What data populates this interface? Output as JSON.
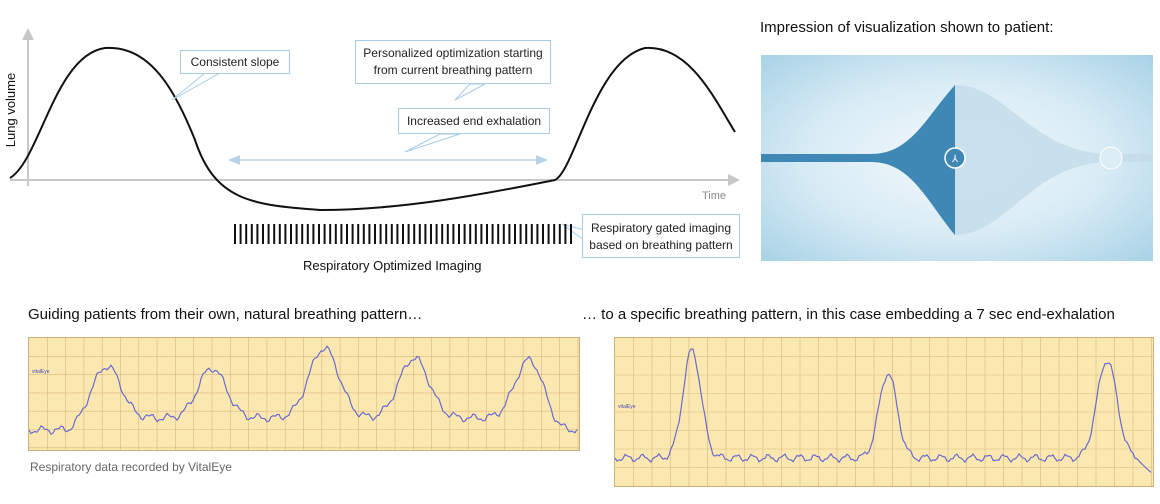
{
  "diagram": {
    "y_axis_label": "Lung volume",
    "x_axis_label": "Time",
    "callouts": {
      "consistent_slope": "Consistent slope",
      "personalized_line1": "Personalized optimization starting",
      "personalized_line2": "from current breathing pattern",
      "increased_end_exhalation": "Increased end exhalation",
      "gated_line1": "Respiratory gated imaging",
      "gated_line2": "based on breathing pattern"
    },
    "imaging_caption": "Respiratory Optimized Imaging"
  },
  "visualization": {
    "heading": "Impression of visualization shown to patient:"
  },
  "natural": {
    "heading": "Guiding patients from their own, natural breathing pattern…",
    "caption": "Respiratory data recorded by VitalEye",
    "badge": "vitalEye"
  },
  "specific": {
    "heading": "… to a specific breathing pattern, in this case embedding a 7 sec end-exhalation",
    "badge": "vitalEye"
  },
  "colors": {
    "chart_bg": "#fbe8b0",
    "trace": "#6b6bd0",
    "vis_dark": "#3f88b5",
    "vis_light": "#cfe3ef"
  }
}
